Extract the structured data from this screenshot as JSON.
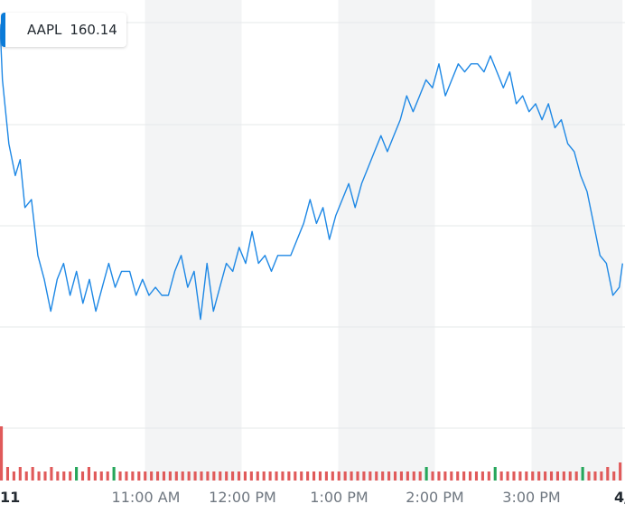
{
  "badge": {
    "symbol": "AAPL",
    "price": "160.14"
  },
  "colors": {
    "line": "#1e88e5",
    "band": "#f3f4f5",
    "grid": "#e6e8ea",
    "vol_up": "#26a65b",
    "vol_down": "#e05a5a",
    "badge_swatch": "#0b7bd8"
  },
  "chart_data": {
    "type": "line",
    "title": "",
    "xlabel": "",
    "ylabel": "",
    "grid": true,
    "x_tick_labels": [
      "11",
      "11:00 AM",
      "12:00 PM",
      "1:00 PM",
      "2:00 PM",
      "3:00 PM",
      "4/"
    ],
    "x_range_minutes": [
      0,
      390
    ],
    "time_bands": [
      [
        93.5,
        153.5
      ],
      [
        213.5,
        273.5
      ],
      [
        333.5,
        390
      ]
    ],
    "series": [
      {
        "name": "AAPL",
        "points": [
          [
            0,
            160.9
          ],
          [
            5,
            160.2
          ],
          [
            9,
            159.4
          ],
          [
            13,
            159.0
          ],
          [
            16,
            159.2
          ],
          [
            19,
            158.6
          ],
          [
            23,
            158.7
          ],
          [
            27,
            158.0
          ],
          [
            31,
            157.7
          ],
          [
            35,
            157.3
          ],
          [
            39,
            157.7
          ],
          [
            43,
            157.9
          ],
          [
            47,
            157.5
          ],
          [
            51,
            157.8
          ],
          [
            55,
            157.4
          ],
          [
            59,
            157.7
          ],
          [
            63,
            157.3
          ],
          [
            67,
            157.6
          ],
          [
            71,
            157.9
          ],
          [
            75,
            157.6
          ],
          [
            79,
            157.8
          ],
          [
            84,
            157.8
          ],
          [
            88,
            157.5
          ],
          [
            92,
            157.7
          ],
          [
            96,
            157.5
          ],
          [
            100,
            157.6
          ],
          [
            104,
            157.5
          ],
          [
            108,
            157.5
          ],
          [
            112,
            157.8
          ],
          [
            116,
            158.0
          ],
          [
            120,
            157.6
          ],
          [
            124,
            157.8
          ],
          [
            128,
            157.2
          ],
          [
            132,
            157.9
          ],
          [
            136,
            157.3
          ],
          [
            140,
            157.6
          ],
          [
            144,
            157.9
          ],
          [
            148,
            157.8
          ],
          [
            152,
            158.1
          ],
          [
            156,
            157.9
          ],
          [
            160,
            158.3
          ],
          [
            164,
            157.9
          ],
          [
            168,
            158.0
          ],
          [
            172,
            157.8
          ],
          [
            176,
            158.0
          ],
          [
            180,
            158.0
          ],
          [
            184,
            158.0
          ],
          [
            188,
            158.2
          ],
          [
            192,
            158.4
          ],
          [
            196,
            158.7
          ],
          [
            200,
            158.4
          ],
          [
            204,
            158.6
          ],
          [
            208,
            158.2
          ],
          [
            212,
            158.5
          ],
          [
            216,
            158.7
          ],
          [
            220,
            158.9
          ],
          [
            224,
            158.6
          ],
          [
            228,
            158.9
          ],
          [
            232,
            159.1
          ],
          [
            236,
            159.3
          ],
          [
            240,
            159.5
          ],
          [
            244,
            159.3
          ],
          [
            248,
            159.5
          ],
          [
            252,
            159.7
          ],
          [
            256,
            160.0
          ],
          [
            260,
            159.8
          ],
          [
            264,
            160.0
          ],
          [
            268,
            160.2
          ],
          [
            272,
            160.1
          ],
          [
            276,
            160.4
          ],
          [
            280,
            160.0
          ],
          [
            284,
            160.2
          ],
          [
            288,
            160.4
          ],
          [
            292,
            160.3
          ],
          [
            296,
            160.4
          ],
          [
            300,
            160.4
          ],
          [
            304,
            160.3
          ],
          [
            308,
            160.5
          ],
          [
            312,
            160.3
          ],
          [
            316,
            160.1
          ],
          [
            320,
            160.3
          ],
          [
            324,
            159.9
          ],
          [
            328,
            160.0
          ],
          [
            332,
            159.8
          ],
          [
            336,
            159.9
          ],
          [
            340,
            159.7
          ],
          [
            344,
            159.9
          ],
          [
            348,
            159.6
          ],
          [
            352,
            159.7
          ],
          [
            356,
            159.4
          ],
          [
            360,
            159.3
          ],
          [
            364,
            159.0
          ],
          [
            368,
            158.8
          ],
          [
            372,
            158.4
          ],
          [
            376,
            158.0
          ],
          [
            380,
            157.9
          ],
          [
            384,
            157.5
          ],
          [
            388,
            157.6
          ],
          [
            390,
            157.9
          ]
        ]
      }
    ],
    "volume": {
      "up": [
        2,
        1,
        1,
        1,
        1,
        1,
        1,
        1,
        1,
        1,
        1,
        1,
        2,
        1,
        1,
        1,
        1,
        1,
        2,
        1,
        1,
        1,
        1,
        1,
        1,
        1,
        1,
        1,
        1,
        1,
        1,
        1,
        1,
        1,
        1,
        1,
        1,
        1,
        1,
        1,
        1,
        1,
        1,
        1,
        1,
        1,
        1,
        1,
        1,
        1,
        1,
        1,
        1,
        1,
        1,
        1,
        1,
        1,
        1,
        1,
        1,
        1,
        1,
        1,
        1,
        1,
        1,
        1,
        2,
        1,
        1,
        1,
        1,
        1,
        1,
        1,
        1,
        1,
        1,
        2,
        1,
        1,
        1,
        1,
        1,
        1,
        1,
        1,
        1,
        1,
        1,
        1,
        1,
        2,
        1,
        1,
        1,
        1,
        1,
        2
      ],
      "down": [
        10,
        2,
        1,
        2,
        1,
        2,
        1,
        1,
        2,
        1,
        1,
        1,
        1,
        1,
        2,
        1,
        1,
        1,
        1,
        1,
        1,
        1,
        1,
        1,
        1,
        1,
        1,
        1,
        1,
        1,
        1,
        1,
        1,
        1,
        1,
        1,
        1,
        1,
        1,
        1,
        1,
        1,
        1,
        1,
        1,
        1,
        1,
        1,
        1,
        1,
        1,
        1,
        1,
        1,
        1,
        1,
        1,
        1,
        1,
        1,
        1,
        1,
        1,
        1,
        1,
        1,
        1,
        1,
        1,
        1,
        1,
        1,
        1,
        1,
        1,
        1,
        1,
        1,
        1,
        1,
        1,
        1,
        1,
        1,
        1,
        1,
        1,
        1,
        1,
        1,
        1,
        1,
        1,
        1,
        1,
        1,
        1,
        2,
        1,
        2
      ]
    }
  }
}
